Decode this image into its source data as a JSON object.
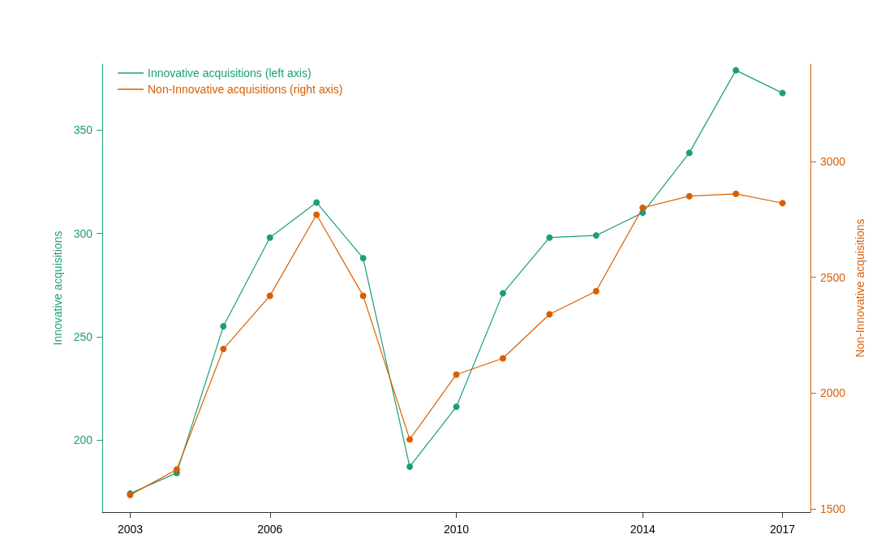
{
  "chart_data": {
    "type": "line",
    "ylabel": "Innovative acquisitions",
    "y2label": "Non-Innovative acquisitions",
    "x": [
      2003,
      2004,
      2005,
      2006,
      2007,
      2008,
      2009,
      2010,
      2011,
      2012,
      2013,
      2014,
      2015,
      2016,
      2017
    ],
    "series": [
      {
        "name": "Innovative acquisitions (left axis)",
        "color": "#1b9e77",
        "values": [
          174,
          184,
          255,
          298,
          315,
          288,
          187,
          216,
          271,
          298,
          299,
          310,
          339,
          379,
          368
        ]
      },
      {
        "name": "Non-Innovative acquisitions (right axis)",
        "color": "#d95f02",
        "axis": "y2",
        "values": [
          1560,
          1670,
          2190,
          2420,
          2770,
          2420,
          1800,
          2080,
          2150,
          2340,
          2440,
          2800,
          2850,
          2860,
          2820
        ]
      }
    ],
    "xlim": [
      2002.4,
      2017.6
    ],
    "xticks": [
      2003,
      2006,
      2010,
      2014,
      2017
    ],
    "ylim": [
      165,
      382
    ],
    "yticks": [
      200,
      250,
      300,
      350
    ],
    "y2lim": [
      1486,
      3420
    ],
    "y2ticks": [
      1500,
      2000,
      2500,
      3000
    ],
    "legend": "top left",
    "marker": "circle",
    "line_style": "solid",
    "grid": false
  }
}
